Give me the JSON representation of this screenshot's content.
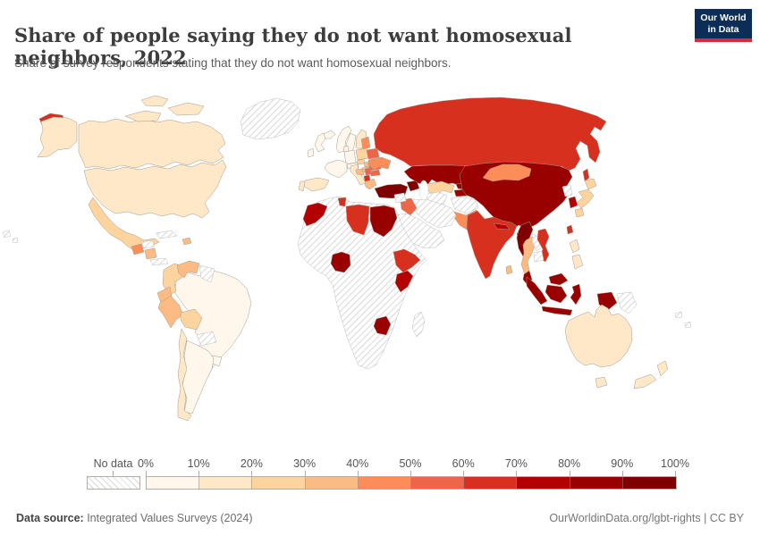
{
  "header": {
    "title": "Share of people saying they do not want homosexual neighbors, 2022",
    "subtitle": "Share of survey respondents stating that they do not want homosexual neighbors.",
    "logo": {
      "line1": "Our World",
      "line2": "in Data",
      "bg": "#0c2d56",
      "accent": "#d42b3f"
    }
  },
  "legend": {
    "no_data_label": "No data",
    "tick_labels": [
      "0%",
      "10%",
      "20%",
      "30%",
      "40%",
      "50%",
      "60%",
      "70%",
      "80%",
      "90%",
      "100%"
    ]
  },
  "footer": {
    "source_label": "Data source:",
    "source_value": " Integrated Values Surveys (2024)",
    "rights": "OurWorldinData.org/lgbt-rights | CC BY"
  },
  "chart_data": {
    "type": "choropleth",
    "title": "Share of people saying they do not want homosexual neighbors, 2022",
    "unit": "%",
    "legend_position": "bottom",
    "no_data_style": "gray-diagonal-hatch",
    "bins": [
      {
        "range": "0-10",
        "color": "#fff7ec"
      },
      {
        "range": "10-20",
        "color": "#fee8c8"
      },
      {
        "range": "20-30",
        "color": "#fdd49e"
      },
      {
        "range": "30-40",
        "color": "#fdbb84"
      },
      {
        "range": "40-50",
        "color": "#fc8d59"
      },
      {
        "range": "50-60",
        "color": "#ef6548"
      },
      {
        "range": "60-70",
        "color": "#d7301f"
      },
      {
        "range": "70-80",
        "color": "#b30000"
      },
      {
        "range": "80-90",
        "color": "#990000"
      },
      {
        "range": "90-100",
        "color": "#7f0000"
      }
    ],
    "countries": {
      "united-states": "10-20",
      "canada": "10-20",
      "greenland": "no-data",
      "mexico": "20-30",
      "guatemala": "40-50",
      "honduras": "no-data",
      "nicaragua": "30-40",
      "panama-costa-rica": "no-data",
      "cuba": "no-data",
      "dominican-republic": "30-40",
      "hawaii": "no-data",
      "colombia": "20-30",
      "venezuela": "30-40",
      "guyana-suriname": "no-data",
      "ecuador": "30-40",
      "peru": "30-40",
      "bolivia": "20-30",
      "brazil": "0-10",
      "paraguay": "no-data",
      "chile": "10-20",
      "argentina": "0-10",
      "uruguay": "0-10",
      "iceland": "0-10",
      "norway": "0-10",
      "sweden": "0-10",
      "finland": "10-20",
      "united-kingdom": "0-10",
      "ireland": "0-10",
      "denmark": "0-10",
      "germany": "0-10",
      "france": "0-10",
      "spain": "10-20",
      "portugal": "10-20",
      "italy": "10-20",
      "austria-switzerland": "0-10",
      "poland": "20-30",
      "czechia": "20-30",
      "slovakia": "30-40",
      "hungary": "30-40",
      "croatia-bosnia": "30-40",
      "serbia": "50-60",
      "albania-north-macedonia": "60-70",
      "greece": "30-40",
      "romania": "50-60",
      "bulgaria": "50-60",
      "baltic-states": "40-50",
      "belarus": "50-60",
      "ukraine": "40-50",
      "russia": "60-70",
      "turkey": "90-100",
      "caucasus": "90-100",
      "kazakhstan": "80-90",
      "uzbekistan": "20-30",
      "turkmenistan": "no-data",
      "kyrgyzstan": "80-90",
      "tajikistan": "80-90",
      "afghanistan": "no-data",
      "pakistan": "40-50",
      "iran": "no-data",
      "iraq": "50-60",
      "syria": "no-data",
      "saudi-arabia": "no-data",
      "china": "80-90",
      "mongolia": "40-50",
      "india": "60-70",
      "nepal": "70-80",
      "bangladesh": "70-80",
      "sri-lanka": "30-40",
      "myanmar": "90-100",
      "thailand": "30-40",
      "laos": "no-data",
      "vietnam": "60-70",
      "cambodia": "no-data",
      "malaysia": "80-90",
      "indonesia": "80-90",
      "philippines": "10-20",
      "taiwan": "60-70",
      "south-korea": "70-80",
      "north-korea": "no-data",
      "japan": "20-30",
      "africa-other": "no-data",
      "morocco": "70-80",
      "tunisia": "60-70",
      "libya": "60-70",
      "egypt": "80-90",
      "nigeria": "80-90",
      "ethiopia": "60-70",
      "kenya": "70-80",
      "zimbabwe": "80-90",
      "madagascar": "no-data",
      "australia": "10-20",
      "new-zealand": "10-20",
      "papua-new-guinea": "no-data",
      "pacific-islands": "no-data"
    }
  }
}
